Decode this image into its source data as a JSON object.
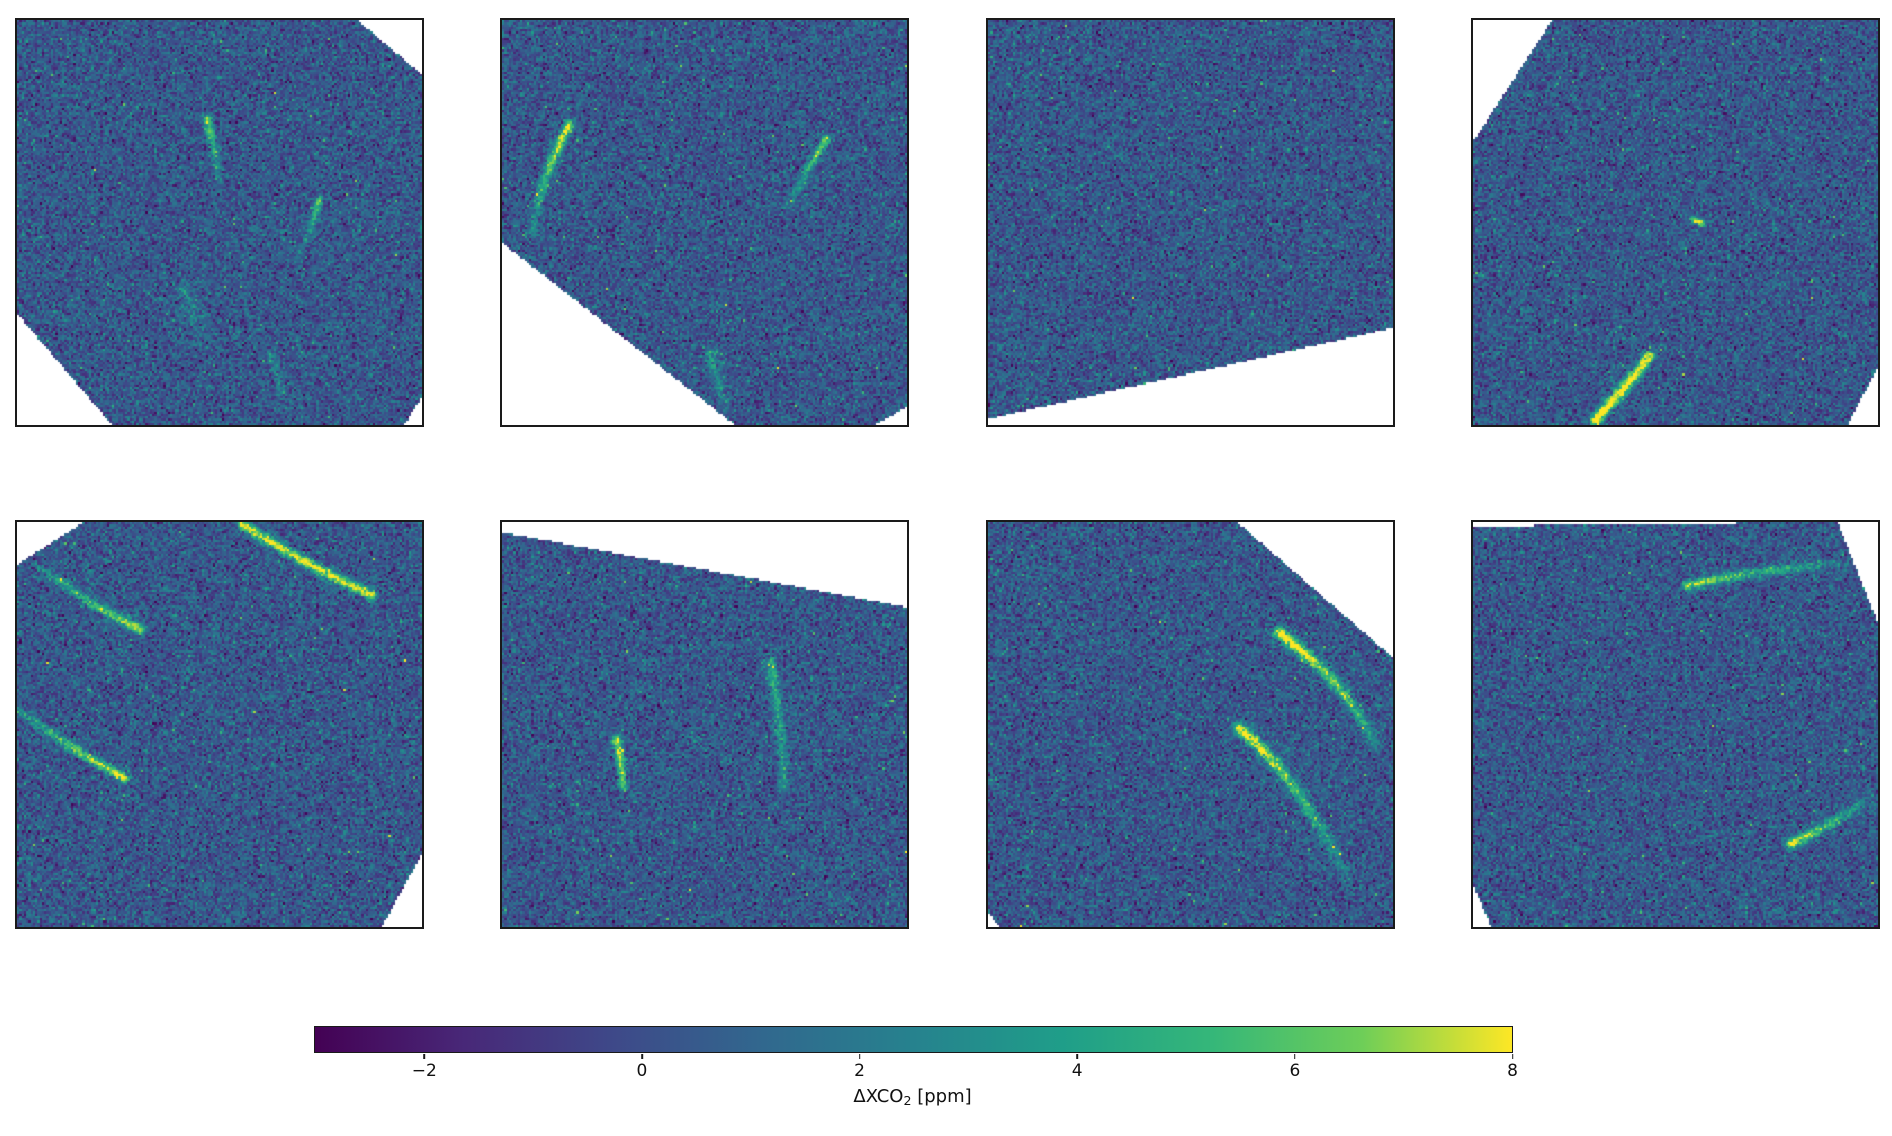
{
  "figure": {
    "background_color": "#ffffff",
    "frame_color": "#1a1a1a",
    "rows": 2,
    "cols": 4
  },
  "chart_data": {
    "type": "heatmap",
    "title": "",
    "description": "Grid of 8 satellite XCO2 enhancement scenes (2 rows x 4 columns). Each panel is a rotated measurement swath of noisy XCO2 retrievals (viridis colormap, white = no data in clipped corners). Bright yellow-green streaks are CO2 plumes.",
    "colormap": {
      "name": "viridis",
      "stops": [
        [
          0.0,
          "#440154"
        ],
        [
          0.125,
          "#482878"
        ],
        [
          0.25,
          "#3e4989"
        ],
        [
          0.375,
          "#31688e"
        ],
        [
          0.5,
          "#26828e"
        ],
        [
          0.625,
          "#1f9e89"
        ],
        [
          0.75,
          "#35b779"
        ],
        [
          0.875,
          "#6ece58"
        ],
        [
          1.0,
          "#fde725"
        ]
      ]
    },
    "colorbar": {
      "orientation": "horizontal",
      "vmin": -3,
      "vmax": 8,
      "ticks": [
        {
          "value": -2,
          "label": "−2"
        },
        {
          "value": 0,
          "label": "0"
        },
        {
          "value": 2,
          "label": "2"
        },
        {
          "value": 4,
          "label": "4"
        },
        {
          "value": 6,
          "label": "6"
        },
        {
          "value": 8,
          "label": "8"
        }
      ],
      "label": {
        "prefix": "ΔXCO",
        "sub": "2",
        "suffix": " [ppm]"
      }
    },
    "noise": {
      "mean": 0.4,
      "sigma": 1.2,
      "cells": 180,
      "outlier_prob": 0.006
    },
    "panels": [
      {
        "id": "scene-1",
        "row": 0,
        "col": 0,
        "seed": 101,
        "polygon": [
          [
            0,
            0
          ],
          [
            0.84,
            0
          ],
          [
            1,
            0.135
          ],
          [
            1,
            0.93
          ],
          [
            0.955,
            1
          ],
          [
            0.235,
            1
          ],
          [
            0,
            0.725
          ]
        ],
        "plumes": [
          {
            "pts": [
              [
                0.47,
                0.245
              ],
              [
                0.485,
                0.315
              ],
              [
                0.5,
                0.415
              ]
            ],
            "amp": [
              6.5,
              1.2
            ],
            "w": 0.0075
          },
          {
            "pts": [
              [
                0.745,
                0.445
              ],
              [
                0.728,
                0.505
              ],
              [
                0.7,
                0.575
              ]
            ],
            "amp": [
              5.5,
              1.0
            ],
            "w": 0.007
          },
          {
            "pts": [
              [
                0.415,
                0.665
              ],
              [
                0.44,
                0.735
              ],
              [
                0.46,
                0.8
              ]
            ],
            "amp": [
              1.6,
              0.7
            ],
            "w": 0.018
          },
          {
            "pts": [
              [
                0.625,
                0.825
              ],
              [
                0.645,
                0.885
              ],
              [
                0.66,
                0.945
              ]
            ],
            "amp": [
              2.2,
              0.9
            ],
            "w": 0.009
          }
        ]
      },
      {
        "id": "scene-2",
        "row": 0,
        "col": 1,
        "seed": 202,
        "polygon": [
          [
            0,
            0
          ],
          [
            1,
            0
          ],
          [
            1,
            0.955
          ],
          [
            0.92,
            1
          ],
          [
            0.575,
            1
          ],
          [
            0,
            0.55
          ]
        ],
        "plumes": [
          {
            "pts": [
              [
                0.165,
                0.26
              ],
              [
                0.11,
                0.385
              ],
              [
                0.075,
                0.525
              ]
            ],
            "amp": [
              8,
              1.8
            ],
            "w": 0.0085
          },
          {
            "pts": [
              [
                0.8,
                0.295
              ],
              [
                0.755,
                0.37
              ],
              [
                0.71,
                0.46
              ]
            ],
            "amp": [
              7,
              1.2
            ],
            "w": 0.0075
          },
          {
            "pts": [
              [
                0.515,
                0.825
              ],
              [
                0.53,
                0.885
              ],
              [
                0.555,
                0.955
              ]
            ],
            "amp": [
              3.5,
              1.2
            ],
            "w": 0.01
          }
        ]
      },
      {
        "id": "scene-3",
        "row": 0,
        "col": 2,
        "seed": 303,
        "polygon": [
          [
            0,
            0
          ],
          [
            1,
            0
          ],
          [
            1,
            0.76
          ],
          [
            0,
            0.985
          ]
        ],
        "plumes": []
      },
      {
        "id": "scene-4",
        "row": 0,
        "col": 3,
        "seed": 404,
        "polygon": [
          [
            0.195,
            0
          ],
          [
            1,
            0
          ],
          [
            1,
            0.855
          ],
          [
            0.925,
            1
          ],
          [
            0,
            1
          ],
          [
            0,
            0.3
          ]
        ],
        "plumes": [
          {
            "pts": [
              [
                0.435,
                0.83
              ],
              [
                0.375,
                0.905
              ],
              [
                0.302,
                0.988
              ]
            ],
            "amp": [
              8.5,
              9
            ],
            "w": 0.0095
          },
          {
            "pts": [
              [
                0.545,
                0.492
              ],
              [
                0.565,
                0.503
              ]
            ],
            "amp": [
              7,
              7
            ],
            "w": 0.006
          }
        ]
      },
      {
        "id": "scene-5",
        "row": 1,
        "col": 0,
        "seed": 505,
        "polygon": [
          [
            0.165,
            0
          ],
          [
            1,
            0
          ],
          [
            1,
            0.82
          ],
          [
            0.9,
            1
          ],
          [
            0,
            1
          ],
          [
            0,
            0.105
          ]
        ],
        "plumes": [
          {
            "pts": [
              [
                0.555,
                0.005
              ],
              [
                0.715,
                0.1
              ],
              [
                0.875,
                0.18
              ]
            ],
            "amp": [
              7.5,
              8
            ],
            "w": 0.0085
          },
          {
            "pts": [
              [
                0.06,
                0.115
              ],
              [
                0.185,
                0.2
              ],
              [
                0.305,
                0.265
              ]
            ],
            "amp": [
              2.5,
              7.5
            ],
            "w": 0.0085
          },
          {
            "pts": [
              [
                0.003,
                0.462
              ],
              [
                0.135,
                0.555
              ],
              [
                0.265,
                0.632
              ]
            ],
            "amp": [
              2.5,
              8
            ],
            "w": 0.0085
          }
        ]
      },
      {
        "id": "scene-6",
        "row": 1,
        "col": 1,
        "seed": 606,
        "polygon": [
          [
            0,
            0.025
          ],
          [
            1,
            0.21
          ],
          [
            1,
            1
          ],
          [
            0,
            1
          ]
        ],
        "plumes": [
          {
            "pts": [
              [
                0.283,
                0.533
              ],
              [
                0.292,
                0.59
              ],
              [
                0.298,
                0.65
              ]
            ],
            "amp": [
              7,
              6
            ],
            "w": 0.0075
          },
          {
            "pts": [
              [
                0.663,
                0.348
              ],
              [
                0.685,
                0.5
              ],
              [
                0.698,
                0.655
              ]
            ],
            "amp": [
              4.5,
              2.5
            ],
            "w": 0.0095
          }
        ]
      },
      {
        "id": "scene-7",
        "row": 1,
        "col": 2,
        "seed": 707,
        "polygon": [
          [
            0,
            0
          ],
          [
            0.615,
            0
          ],
          [
            1,
            0.335
          ],
          [
            1,
            1
          ],
          [
            0.03,
            1
          ],
          [
            0,
            0.965
          ]
        ],
        "plumes": [
          {
            "pts": [
              [
                0.72,
                0.275
              ],
              [
                0.862,
                0.405
              ],
              [
                0.955,
                0.55
              ]
            ],
            "amp": [
              9,
              2.5
            ],
            "w": 0.0105
          },
          {
            "pts": [
              [
                0.62,
                0.51
              ],
              [
                0.758,
                0.66
              ],
              [
                0.885,
                0.875
              ]
            ],
            "amp": [
              9,
              1.8
            ],
            "w": 0.0105
          }
        ]
      },
      {
        "id": "scene-8",
        "row": 1,
        "col": 3,
        "seed": 808,
        "polygon": [
          [
            0,
            0.01
          ],
          [
            0.9,
            0
          ],
          [
            1,
            0.25
          ],
          [
            1,
            1
          ],
          [
            0.045,
            1
          ],
          [
            0,
            0.895
          ]
        ],
        "plumes": [
          {
            "pts": [
              [
                0.53,
                0.157
              ],
              [
                0.72,
                0.122
              ],
              [
                0.95,
                0.098
              ]
            ],
            "amp": [
              7,
              1.2
            ],
            "w": 0.0085
          },
          {
            "pts": [
              [
                0.785,
                0.795
              ],
              [
                0.88,
                0.744
              ],
              [
                0.965,
                0.695
              ]
            ],
            "amp": [
              8,
              1.8
            ],
            "w": 0.009
          }
        ]
      }
    ]
  }
}
